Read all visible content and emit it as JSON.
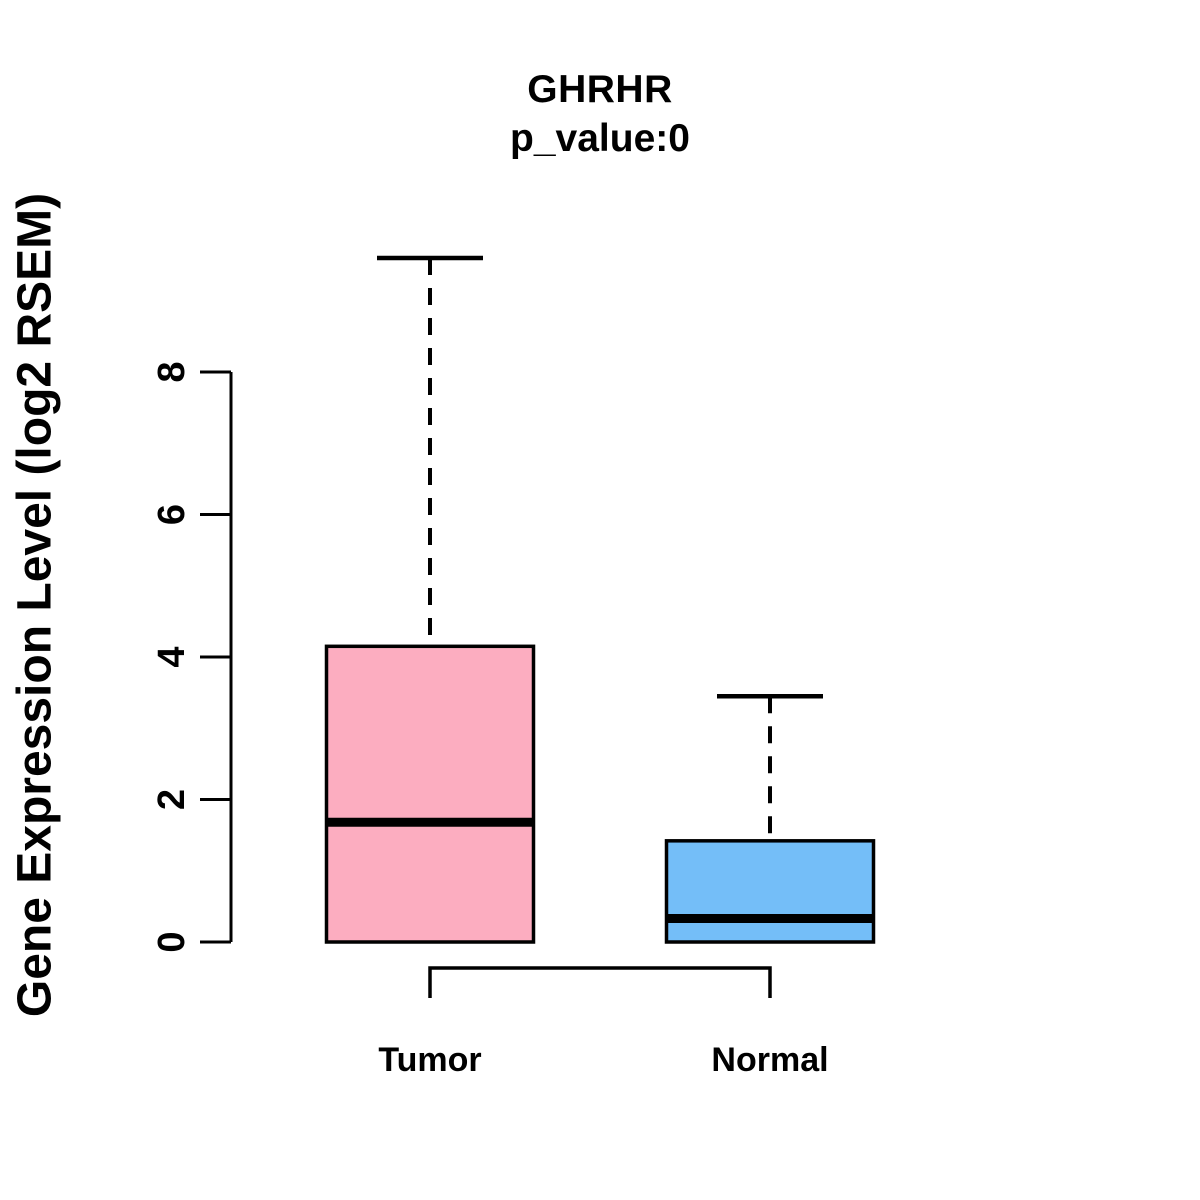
{
  "figure": {
    "background_color": "#ffffff",
    "text_color": "#000000"
  },
  "chart_data": {
    "type": "boxplot",
    "title": "GHRHR",
    "subtitle": "p_value:0",
    "ylabel": "Gene Expression Level (log2 RSEM)",
    "xlabel": "",
    "ylim": [
      0,
      9.6
    ],
    "yticks": [
      0,
      2,
      4,
      6,
      8
    ],
    "grid": false,
    "categories": [
      "Tumor",
      "Normal"
    ],
    "series": [
      {
        "name": "Tumor",
        "color": "#FCADC0",
        "min": 0,
        "q1": 0,
        "median": 1.68,
        "q3": 4.15,
        "max": 9.6
      },
      {
        "name": "Normal",
        "color": "#74BEF8",
        "min": 0,
        "q1": 0,
        "median": 0.33,
        "q3": 1.42,
        "max": 3.45
      }
    ],
    "comparison_bracket": {
      "between": [
        "Tumor",
        "Normal"
      ]
    },
    "styles": {
      "box_border_color": "#000000",
      "median_color": "#000000",
      "whisker_style": "dashed",
      "axis_color": "#000000"
    }
  }
}
